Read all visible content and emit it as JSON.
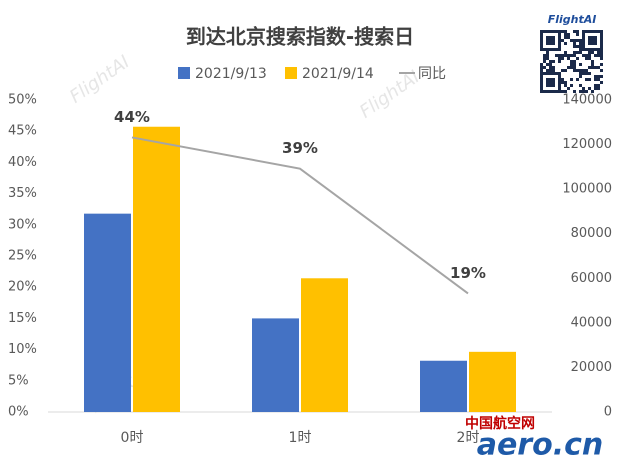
{
  "chart_data": {
    "type": "bar_line",
    "title": "到达北京搜索指数-搜索日",
    "categories": [
      "0时",
      "1时",
      "2时"
    ],
    "series": [
      {
        "name": "2021/9/13",
        "color": "#4472c4",
        "type": "bar",
        "axis": "y2",
        "values": [
          89000,
          42000,
          23000
        ]
      },
      {
        "name": "2021/9/14",
        "color": "#ffc000",
        "type": "bar",
        "axis": "y2",
        "values": [
          128000,
          60000,
          27000
        ]
      },
      {
        "name": "同比",
        "color": "#a5a5a5",
        "type": "line",
        "axis": "y",
        "values": [
          44,
          39,
          19
        ],
        "value_labels": [
          "44%",
          "39%",
          "19%"
        ]
      }
    ],
    "ylim": [
      0,
      50
    ],
    "yticks": [
      {
        "value": 0,
        "label": "0%"
      },
      {
        "value": 5,
        "label": "5%"
      },
      {
        "value": 10,
        "label": "10%"
      },
      {
        "value": 15,
        "label": "15%"
      },
      {
        "value": 20,
        "label": "20%"
      },
      {
        "value": 25,
        "label": "25%"
      },
      {
        "value": 30,
        "label": "30%"
      },
      {
        "value": 35,
        "label": "35%"
      },
      {
        "value": 40,
        "label": "40%"
      },
      {
        "value": 45,
        "label": "45%"
      },
      {
        "value": 50,
        "label": "50%"
      }
    ],
    "y2lim": [
      0,
      140000
    ],
    "y2ticks": [
      0,
      20000,
      40000,
      60000,
      80000,
      100000,
      120000,
      140000
    ],
    "legend": "top",
    "watermark": "FlightAI",
    "site_name": "中国航空网",
    "site_logo": "aero.cn"
  }
}
